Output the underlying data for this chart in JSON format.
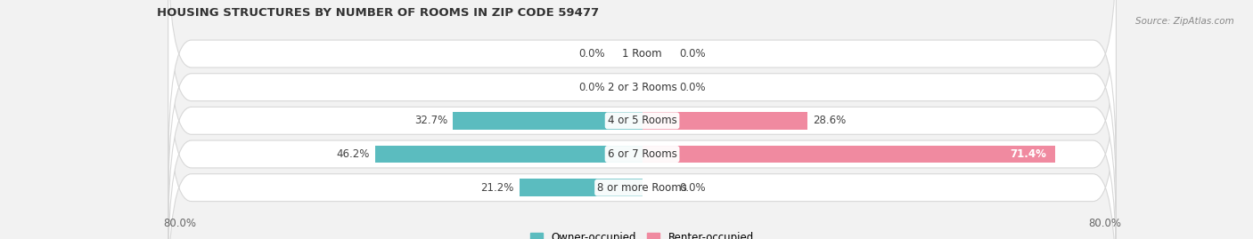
{
  "title": "HOUSING STRUCTURES BY NUMBER OF ROOMS IN ZIP CODE 59477",
  "source": "Source: ZipAtlas.com",
  "categories": [
    "1 Room",
    "2 or 3 Rooms",
    "4 or 5 Rooms",
    "6 or 7 Rooms",
    "8 or more Rooms"
  ],
  "owner_values": [
    0.0,
    0.0,
    32.7,
    46.2,
    21.2
  ],
  "renter_values": [
    0.0,
    0.0,
    28.6,
    71.4,
    0.0
  ],
  "owner_color": "#5bbcbf",
  "renter_color": "#f08aa0",
  "bar_height": 0.52,
  "xlim_left": -80,
  "xlim_right": 80,
  "background_color": "#f2f2f2",
  "row_bg_color": "#ffffff",
  "row_border_color": "#d8d8d8",
  "title_fontsize": 9.5,
  "label_fontsize": 8.5,
  "legend_fontsize": 8.5,
  "source_fontsize": 7.5,
  "xtick_left_label": "80.0%",
  "xtick_right_label": "80.0%"
}
